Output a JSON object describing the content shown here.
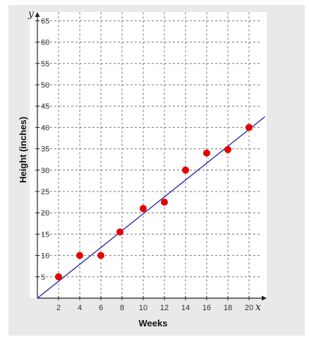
{
  "chart_data": {
    "type": "scatter",
    "xlabel": "Weeks",
    "ylabel": "Height (inches)",
    "x_axis_letter": "x",
    "y_axis_letter": "y",
    "xlim": [
      0,
      21
    ],
    "ylim": [
      0,
      67
    ],
    "x_ticks": [
      2,
      4,
      6,
      8,
      10,
      12,
      14,
      16,
      18,
      20
    ],
    "y_ticks": [
      5,
      10,
      15,
      20,
      25,
      30,
      35,
      40,
      45,
      50,
      55,
      60,
      65
    ],
    "grid": true,
    "points": [
      {
        "x": 2,
        "y": 5
      },
      {
        "x": 4,
        "y": 10
      },
      {
        "x": 6,
        "y": 10
      },
      {
        "x": 7.8,
        "y": 15.5
      },
      {
        "x": 10,
        "y": 21
      },
      {
        "x": 12,
        "y": 22.5
      },
      {
        "x": 14,
        "y": 30
      },
      {
        "x": 16,
        "y": 34
      },
      {
        "x": 18,
        "y": 34.8
      },
      {
        "x": 20,
        "y": 40
      }
    ],
    "trend_line": {
      "x0": 0,
      "y0": 0,
      "x1": 21.5,
      "y1": 42.5
    },
    "colors": {
      "point": "#e60000",
      "trend_line": "#1f1fa3",
      "grid": "#777777",
      "axis": "#222222",
      "panel_background": "#e9e9e9",
      "plot_background": "#ffffff"
    }
  }
}
